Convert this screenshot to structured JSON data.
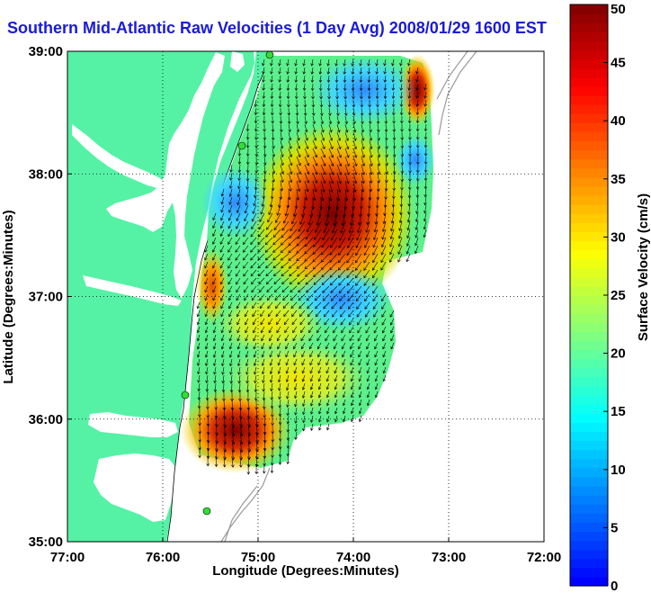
{
  "title": "Southern Mid-Atlantic Raw Velocities (1 Day Avg) 2008/01/29 1600 EST",
  "chart_data": {
    "type": "map",
    "xlabel": "Longitude (Degrees:Minutes)",
    "ylabel": "Latitude (Degrees:Minutes)",
    "x_ticks": [
      "77:00",
      "76:00",
      "75:00",
      "74:00",
      "73:00",
      "72:00"
    ],
    "y_ticks": [
      "39:00",
      "38:00",
      "37:00",
      "36:00",
      "35:00"
    ],
    "xlim": [
      -77,
      -72
    ],
    "ylim": [
      35,
      39
    ],
    "grid": true,
    "colorbar": {
      "label": "Surface Velocity (cm/s)",
      "ticks": [
        "50",
        "45",
        "40",
        "35",
        "30",
        "25",
        "20",
        "15",
        "10",
        "5",
        "0"
      ],
      "range": [
        0,
        50
      ],
      "colormap": "jet"
    },
    "colors": {
      "land": "#55f2a5",
      "water": "#ffffff",
      "title": "#1a1adb",
      "site_marker": "#33dd33",
      "vectors": "#000000",
      "bathymetry": "#999999"
    }
  }
}
